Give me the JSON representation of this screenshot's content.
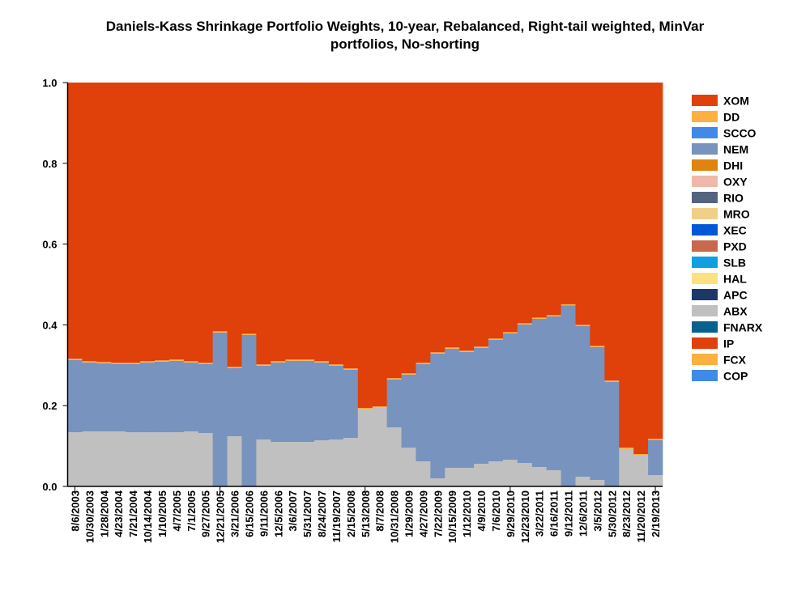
{
  "chart_data": {
    "type": "area",
    "stacked": true,
    "step": true,
    "title_line1": "Daniels-Kass Shrinkage Portfolio Weights, 10-year, Rebalanced, Right-tail weighted, MinVar",
    "title_line2": "portfolios, No-shorting",
    "xlabel": "",
    "ylabel": "",
    "ylim": [
      0,
      1
    ],
    "yticks": [
      "0.0",
      "0.2",
      "0.4",
      "0.6",
      "0.8",
      "1.0"
    ],
    "x": [
      "8/6/2003",
      "10/30/2003",
      "1/28/2004",
      "4/23/2004",
      "7/21/2004",
      "10/14/2004",
      "1/10/2005",
      "4/7/2005",
      "7/1/2005",
      "9/27/2005",
      "12/21/2005",
      "3/21/2006",
      "6/15/2006",
      "9/11/2006",
      "12/5/2006",
      "3/6/2007",
      "5/31/2007",
      "8/24/2007",
      "11/19/2007",
      "2/15/2008",
      "5/13/2008",
      "8/7/2008",
      "10/31/2008",
      "1/29/2009",
      "4/27/2009",
      "7/22/2009",
      "10/15/2009",
      "1/12/2010",
      "4/9/2010",
      "7/6/2010",
      "9/29/2010",
      "12/23/2010",
      "3/22/2011",
      "6/16/2011",
      "9/12/2011",
      "12/6/2011",
      "3/5/2012",
      "5/30/2012",
      "8/23/2012",
      "11/20/2012",
      "2/19/2013"
    ],
    "legend_position": "right",
    "legend": [
      {
        "name": "XOM",
        "color": "#e0400a"
      },
      {
        "name": "DD",
        "color": "#fbb040"
      },
      {
        "name": "SCCO",
        "color": "#4189e8"
      },
      {
        "name": "NEM",
        "color": "#7893be"
      },
      {
        "name": "DHI",
        "color": "#e0830f"
      },
      {
        "name": "OXY",
        "color": "#f0b8a8"
      },
      {
        "name": "RIO",
        "color": "#52647f"
      },
      {
        "name": "MRO",
        "color": "#f0d088"
      },
      {
        "name": "XEC",
        "color": "#0058d8"
      },
      {
        "name": "PXD",
        "color": "#c8684c"
      },
      {
        "name": "SLB",
        "color": "#10a0e0"
      },
      {
        "name": "HAL",
        "color": "#fde080"
      },
      {
        "name": "APC",
        "color": "#1c3868"
      },
      {
        "name": "ABX",
        "color": "#c0c0c0"
      },
      {
        "name": "FNARX",
        "color": "#08608e"
      },
      {
        "name": "IP",
        "color": "#e0400a"
      },
      {
        "name": "FCX",
        "color": "#fbb040"
      },
      {
        "name": "COP",
        "color": "#4189e8"
      }
    ],
    "series": [
      {
        "name": "ABX",
        "color": "#c0c0c0",
        "values": [
          0.134,
          0.136,
          0.136,
          0.136,
          0.134,
          0.134,
          0.134,
          0.134,
          0.136,
          0.132,
          0,
          0.124,
          0,
          0.116,
          0.11,
          0.11,
          0.11,
          0.114,
          0.116,
          0.12,
          0.191,
          0.195,
          0.146,
          0.096,
          0.062,
          0.02,
          0.046,
          0.046,
          0.056,
          0.062,
          0.066,
          0.058,
          0.048,
          0.04,
          0,
          0.024,
          0.016,
          0,
          0.093,
          0.077,
          0.028
        ]
      },
      {
        "name": "NEM",
        "color": "#7893be",
        "values": [
          0.179,
          0.171,
          0.169,
          0.167,
          0.169,
          0.173,
          0.175,
          0.177,
          0.171,
          0.171,
          0.381,
          0.169,
          0.375,
          0.183,
          0.197,
          0.201,
          0.201,
          0.193,
          0.183,
          0.169,
          0,
          0,
          0.119,
          0.181,
          0.241,
          0.309,
          0.295,
          0.287,
          0.287,
          0.301,
          0.313,
          0.343,
          0.367,
          0.381,
          0.448,
          0.373,
          0.329,
          0.259,
          0,
          0,
          0.087
        ]
      },
      {
        "name": "DD",
        "color": "#fbb040",
        "values": [
          0.003,
          0.003,
          0.003,
          0.003,
          0.003,
          0.003,
          0.003,
          0.003,
          0.003,
          0.003,
          0.003,
          0.003,
          0.003,
          0.003,
          0.003,
          0.003,
          0.003,
          0.003,
          0.003,
          0.003,
          0.003,
          0.003,
          0.003,
          0.003,
          0.003,
          0.003,
          0.003,
          0.003,
          0.003,
          0.003,
          0.003,
          0.003,
          0.003,
          0.003,
          0.003,
          0.003,
          0.003,
          0.003,
          0.003,
          0.003,
          0.003
        ]
      },
      {
        "name": "XOM",
        "color": "#e0400a",
        "values": [
          0.684,
          0.69,
          0.692,
          0.694,
          0.694,
          0.69,
          0.688,
          0.686,
          0.69,
          0.694,
          0.616,
          0.704,
          0.622,
          0.698,
          0.69,
          0.686,
          0.686,
          0.69,
          0.698,
          0.708,
          0.806,
          0.802,
          0.732,
          0.72,
          0.694,
          0.668,
          0.656,
          0.664,
          0.654,
          0.634,
          0.618,
          0.596,
          0.582,
          0.576,
          0.549,
          0.6,
          0.652,
          0.738,
          0.904,
          0.92,
          0.882
        ]
      }
    ]
  }
}
